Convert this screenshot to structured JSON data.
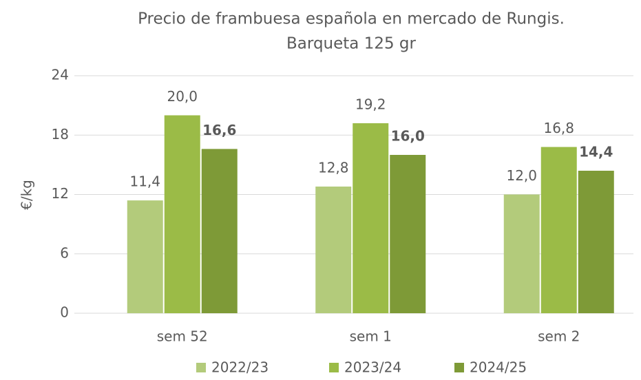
{
  "chart_data": {
    "type": "bar",
    "title": [
      "Precio de frambuesa española en mercado de Rungis.",
      "Barqueta 125 gr"
    ],
    "y_label": "€/kg",
    "categories": [
      "sem 52",
      "sem 1",
      "sem 2"
    ],
    "series": [
      {
        "name": "2022/23",
        "color": "#b3cb7b",
        "values": [
          11.4,
          12.8,
          12.0
        ],
        "value_labels": [
          "11,4",
          "12,8",
          "12,0"
        ]
      },
      {
        "name": "2023/24",
        "color": "#9bbb47",
        "values": [
          20.0,
          19.2,
          16.8
        ],
        "value_labels": [
          "20,0",
          "19,2",
          "16,8"
        ]
      },
      {
        "name": "2024/25",
        "color": "#7e9a37",
        "values": [
          16.6,
          16.0,
          14.4
        ],
        "value_labels": [
          "16,6",
          "16,0",
          "14,4"
        ],
        "bold_labels": true
      }
    ],
    "ylim": [
      0,
      24
    ],
    "yticks": [
      0,
      6,
      12,
      18,
      24
    ],
    "grid": true,
    "legend": "bottom"
  }
}
